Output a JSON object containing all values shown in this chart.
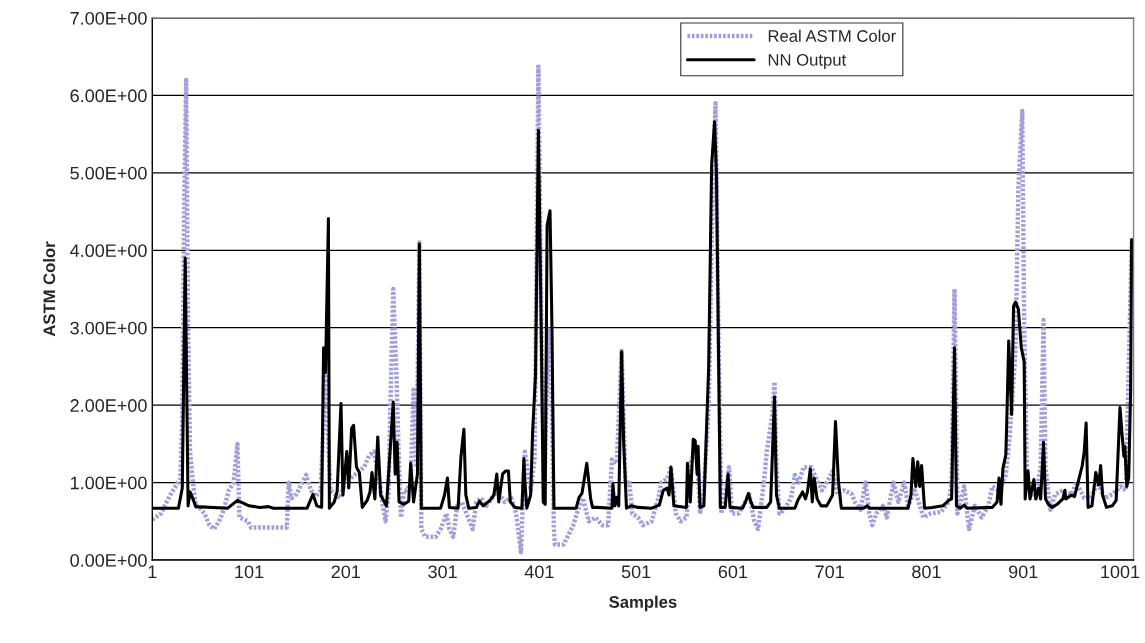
{
  "chart_data": {
    "type": "line",
    "xlabel": "Samples",
    "ylabel": "ASTM Color",
    "xlim": [
      1,
      1015
    ],
    "xticks": [
      1,
      101,
      201,
      301,
      401,
      501,
      601,
      701,
      801,
      901,
      1001
    ],
    "ylim": [
      0,
      7
    ],
    "yticks": [
      {
        "value": 0,
        "label": "0.00E+00"
      },
      {
        "value": 1,
        "label": "1.00E+00"
      },
      {
        "value": 2,
        "label": "2.00E+00"
      },
      {
        "value": 3,
        "label": "3.00E+00"
      },
      {
        "value": 4,
        "label": "4.00E+00"
      },
      {
        "value": 5,
        "label": "5.00E+00"
      },
      {
        "value": 6,
        "label": "6.00E+00"
      },
      {
        "value": 7,
        "label": "7.00E+00"
      }
    ],
    "grid": "y",
    "legend": "top right",
    "marker": "none",
    "series": [
      {
        "name": "Real ASTM Color",
        "color": "#a0a0dc",
        "line_style": "dotted",
        "x": [
          1,
          10,
          15,
          20,
          25,
          30,
          32,
          34,
          36,
          38,
          40,
          43,
          46,
          50,
          55,
          60,
          65,
          70,
          75,
          80,
          85,
          89,
          91,
          100,
          103,
          140,
          142,
          145,
          150,
          160,
          165,
          170,
          175,
          180,
          185,
          195,
          200,
          210,
          220,
          225,
          230,
          236,
          238,
          242,
          245,
          248,
          250,
          253,
          256,
          258,
          261,
          264,
          268,
          271,
          274,
          277,
          279,
          283,
          294,
          299,
          305,
          308,
          312,
          316,
          321,
          332,
          336,
          341,
          346,
          352,
          357,
          365,
          372,
          377,
          382,
          385,
          386,
          392,
          396,
          397,
          400,
          403,
          406,
          410,
          414,
          416,
          417,
          426,
          430,
          436,
          441,
          446,
          452,
          459,
          466,
          472,
          476,
          481,
          486,
          490,
          494,
          497,
          503,
          508,
          517,
          524,
          527,
          533,
          537,
          542,
          547,
          553,
          558,
          564,
          567,
          571,
          576,
          580,
          583,
          586,
          589,
          593,
          597,
          600,
          607,
          618,
          623,
          627,
          633,
          636,
          642,
          644,
          646,
          649,
          654,
          661,
          665,
          669,
          674,
          682,
          689,
          693,
          698,
          704,
          709,
          716,
          724,
          727,
          733,
          738,
          742,
          745,
          749,
          756,
          760,
          767,
          772,
          778,
          782,
          789,
          798,
          805,
          816,
          824,
          827,
          830,
          833,
          840,
          845,
          851,
          858,
          865,
          869,
          876,
          883,
          887,
          893,
          896,
          900,
          902,
          905,
          909,
          914,
          919,
          922,
          924,
          929,
          934,
          942,
          951,
          956,
          964,
          971,
          978,
          985,
          993,
          1002,
          1007,
          1012,
          1013
        ],
        "values": [
          0.52,
          0.6,
          0.73,
          0.85,
          0.95,
          1.05,
          1.8,
          4.6,
          6.2,
          3.0,
          1.4,
          1.0,
          0.7,
          0.68,
          0.6,
          0.45,
          0.4,
          0.5,
          0.65,
          0.9,
          1.0,
          1.5,
          0.55,
          0.5,
          0.42,
          0.42,
          1.0,
          0.8,
          0.85,
          1.1,
          0.9,
          0.82,
          0.9,
          2.4,
          0.9,
          0.8,
          1.0,
          1.1,
          1.2,
          1.35,
          1.4,
          1.0,
          0.8,
          0.5,
          0.85,
          2.5,
          3.5,
          2.5,
          1.2,
          0.55,
          0.9,
          0.9,
          1.0,
          2.2,
          1.2,
          4.1,
          0.4,
          0.3,
          0.3,
          0.4,
          0.6,
          0.4,
          0.3,
          0.7,
          0.75,
          0.4,
          0.75,
          0.8,
          0.7,
          0.8,
          0.9,
          0.75,
          0.8,
          0.6,
          0.1,
          1.1,
          1.4,
          0.9,
          1.3,
          2.5,
          6.4,
          3.0,
          0.75,
          3.0,
          2.0,
          0.4,
          0.2,
          0.2,
          0.3,
          0.45,
          0.65,
          0.8,
          0.5,
          0.55,
          0.45,
          0.45,
          1.3,
          1.25,
          2.7,
          1.0,
          1.0,
          0.6,
          0.55,
          0.45,
          0.5,
          0.8,
          1.0,
          1.05,
          1.2,
          0.6,
          0.5,
          0.55,
          1.3,
          1.4,
          0.6,
          0.9,
          2.0,
          4.7,
          5.9,
          3.0,
          0.6,
          0.8,
          1.2,
          0.6,
          0.6,
          0.85,
          0.5,
          0.4,
          1.0,
          1.4,
          1.9,
          2.3,
          1.2,
          0.6,
          0.65,
          0.8,
          1.1,
          1.0,
          1.2,
          1.2,
          1.0,
          0.9,
          1.0,
          1.15,
          0.85,
          0.9,
          0.85,
          0.75,
          0.65,
          1.0,
          0.6,
          0.45,
          0.6,
          0.7,
          0.55,
          1.0,
          0.75,
          1.0,
          0.7,
          0.9,
          0.55,
          0.6,
          0.62,
          0.75,
          1.0,
          3.5,
          0.6,
          0.95,
          0.4,
          0.7,
          0.55,
          0.7,
          0.95,
          0.9,
          1.1,
          1.6,
          2.7,
          4.8,
          5.8,
          3.0,
          1.0,
          0.9,
          0.8,
          1.2,
          3.1,
          1.2,
          0.65,
          0.85,
          0.9,
          0.85,
          1.0,
          0.8,
          0.8,
          1.0,
          0.8,
          0.85,
          0.95,
          0.9,
          3.5,
          4.1
        ]
      },
      {
        "name": "NN Output",
        "color": "#000000",
        "line_style": "solid",
        "x": [
          1,
          28,
          32,
          35,
          38,
          40,
          43,
          46,
          79,
          89,
          101,
          112,
          121,
          126,
          161,
          167,
          171,
          176,
          178,
          180,
          183,
          184,
          189,
          192,
          196,
          198,
          202,
          204,
          207,
          209,
          212,
          215,
          218,
          223,
          226,
          228,
          231,
          234,
          237,
          243,
          248,
          250,
          252,
          254,
          256,
          261,
          266,
          268,
          271,
          275,
          277,
          279,
          299,
          303,
          306,
          308,
          317,
          320,
          323,
          325,
          328,
          336,
          339,
          343,
          350,
          354,
          357,
          359,
          363,
          366,
          369,
          371,
          376,
          383,
          385,
          386,
          388,
          392,
          394,
          397,
          400,
          403,
          405,
          407,
          409,
          412,
          414,
          416,
          439,
          442,
          445,
          450,
          454,
          456,
          461,
          476,
          477,
          479,
          481,
          483,
          486,
          488,
          491,
          496,
          503,
          517,
          525,
          529,
          533,
          535,
          537,
          540,
          553,
          554,
          557,
          560,
          562,
          564,
          565,
          567,
          571,
          574,
          576,
          579,
          582,
          584,
          586,
          588,
          593,
          596,
          598,
          611,
          614,
          617,
          619,
          622,
          636,
          640,
          644,
          646,
          649,
          665,
          668,
          673,
          676,
          678,
          681,
          683,
          685,
          688,
          692,
          698,
          704,
          707,
          710,
          713,
          736,
          740,
          742,
          782,
          785,
          787,
          790,
          792,
          794,
          796,
          799,
          807,
          818,
          824,
          827,
          830,
          832,
          836,
          840,
          843,
          869,
          874,
          876,
          878,
          880,
          883,
          884,
          886,
          889,
          891,
          893,
          896,
          899,
          902,
          903,
          906,
          908,
          912,
          914,
          917,
          919,
          922,
          924,
          927,
          931,
          936,
          942,
          944,
          945,
          951,
          954,
          958,
          962,
          964,
          966,
          968,
          972,
          976,
          979,
          981,
          983,
          987,
          993,
          997,
          1001,
          1003,
          1005,
          1006,
          1008,
          1010,
          1012,
          1013
        ],
        "values": [
          0.67,
          0.67,
          0.93,
          3.9,
          0.7,
          0.88,
          0.79,
          0.69,
          0.67,
          0.77,
          0.7,
          0.68,
          0.69,
          0.67,
          0.67,
          0.85,
          0.7,
          0.68,
          2.74,
          2.42,
          4.41,
          0.67,
          0.75,
          0.88,
          2.02,
          0.84,
          1.4,
          0.93,
          1.7,
          1.74,
          1.2,
          1.13,
          0.68,
          0.77,
          0.88,
          1.13,
          0.79,
          1.59,
          0.84,
          0.7,
          1.65,
          2.04,
          1.11,
          1.52,
          0.75,
          0.72,
          0.76,
          1.25,
          0.75,
          1.11,
          4.08,
          0.67,
          0.67,
          0.84,
          1.06,
          0.68,
          0.67,
          1.34,
          1.69,
          0.84,
          0.67,
          0.68,
          0.76,
          0.7,
          0.77,
          0.84,
          1.11,
          0.75,
          1.11,
          1.15,
          1.15,
          0.75,
          0.68,
          0.67,
          1.31,
          1.02,
          0.67,
          0.84,
          1.65,
          2.38,
          5.55,
          2.92,
          0.75,
          0.72,
          4.32,
          4.51,
          3.01,
          0.67,
          0.67,
          0.81,
          0.86,
          1.25,
          0.79,
          0.68,
          0.68,
          0.67,
          0.98,
          0.7,
          0.81,
          0.7,
          2.69,
          1.56,
          0.67,
          0.7,
          0.68,
          0.67,
          0.71,
          0.9,
          0.93,
          0.84,
          1.2,
          0.7,
          0.68,
          1.25,
          0.75,
          1.56,
          1.54,
          1.11,
          1.47,
          0.68,
          0.7,
          1.79,
          2.51,
          5.1,
          5.66,
          5.0,
          2.83,
          0.68,
          0.68,
          1.11,
          0.68,
          0.67,
          0.75,
          0.86,
          0.77,
          0.68,
          0.68,
          0.75,
          2.11,
          0.84,
          0.67,
          0.67,
          0.77,
          0.88,
          0.79,
          0.88,
          1.18,
          0.75,
          1.06,
          0.79,
          0.7,
          0.7,
          0.84,
          1.79,
          1.02,
          0.67,
          0.67,
          0.7,
          0.67,
          0.67,
          0.84,
          1.31,
          0.95,
          1.27,
          0.95,
          1.22,
          0.67,
          0.68,
          0.7,
          0.77,
          0.79,
          2.74,
          0.7,
          0.67,
          0.71,
          0.67,
          0.68,
          0.75,
          1.06,
          0.72,
          1.18,
          1.36,
          1.79,
          2.83,
          1.88,
          3.28,
          3.33,
          3.24,
          2.74,
          2.56,
          0.79,
          1.15,
          0.79,
          1.04,
          0.79,
          0.93,
          0.79,
          1.52,
          0.79,
          0.72,
          0.68,
          0.72,
          0.79,
          0.9,
          0.79,
          0.84,
          0.82,
          1.02,
          1.22,
          1.4,
          1.77,
          0.68,
          0.7,
          1.13,
          0.97,
          1.22,
          0.84,
          0.68,
          0.7,
          0.77,
          1.97,
          1.65,
          1.34,
          1.47,
          0.95,
          1.06,
          2.2,
          4.14
        ]
      }
    ]
  }
}
